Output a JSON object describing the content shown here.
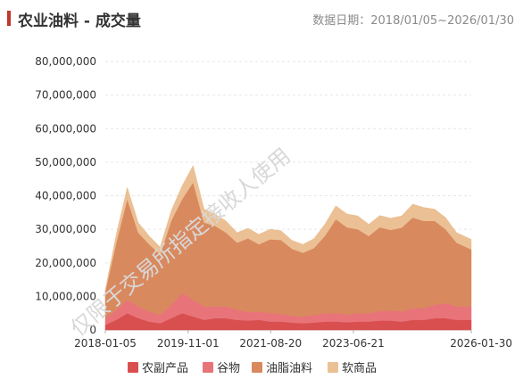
{
  "header": {
    "title": "农业油料 - 成交量",
    "date_range": "数据日期：2018/01/05~2026/01/30"
  },
  "watermark": "仅限于交易所指定接收人使用",
  "chart_data": {
    "type": "area",
    "stacked": true,
    "ylim": [
      0,
      80000000
    ],
    "y_ticks": [
      "80,000,000",
      "70,000,000",
      "60,000,000",
      "50,000,000",
      "40,000,000",
      "30,000,000",
      "20,000,000",
      "10,000,000",
      "0"
    ],
    "y_tick_values": [
      80000000,
      70000000,
      60000000,
      50000000,
      40000000,
      30000000,
      20000000,
      10000000,
      0
    ],
    "x_ticks": [
      "2018-01-05",
      "2019-11-01",
      "2021-08-20",
      "2023-06-21",
      "2026-01-30"
    ],
    "x_tick_positions": [
      0,
      0.2262,
      0.4519,
      0.6779,
      1.0
    ],
    "legend_placement": "bottom",
    "x_index": [
      0,
      0.03,
      0.06,
      0.09,
      0.12,
      0.15,
      0.18,
      0.21,
      0.24,
      0.27,
      0.3,
      0.33,
      0.36,
      0.39,
      0.42,
      0.45,
      0.48,
      0.51,
      0.54,
      0.57,
      0.6,
      0.63,
      0.66,
      0.69,
      0.72,
      0.75,
      0.78,
      0.81,
      0.84,
      0.87,
      0.9,
      0.93,
      0.96,
      1.0
    ],
    "series": [
      {
        "name": "农副产品",
        "color": "#d94f4f",
        "values": [
          1500000,
          3000000,
          5000000,
          3500000,
          2500000,
          2000000,
          3500000,
          5000000,
          4000000,
          3000000,
          3500000,
          3500000,
          3000000,
          2800000,
          3000000,
          2500000,
          2500000,
          2200000,
          2000000,
          2200000,
          2500000,
          2500000,
          2300000,
          2500000,
          2500000,
          2800000,
          2800000,
          2500000,
          3000000,
          3000000,
          3500000,
          3500000,
          3000000,
          3000000
        ]
      },
      {
        "name": "谷物",
        "color": "#e8747a",
        "values": [
          2000000,
          3000000,
          4000000,
          3500000,
          3000000,
          2500000,
          4000000,
          6000000,
          5000000,
          4000000,
          3500000,
          3500000,
          3000000,
          2500000,
          2500000,
          2500000,
          2300000,
          2000000,
          2000000,
          2200000,
          2500000,
          2500000,
          2300000,
          2500000,
          2500000,
          2800000,
          3000000,
          3000000,
          3500000,
          3500000,
          4000000,
          4500000,
          4000000,
          4000000
        ]
      },
      {
        "name": "油脂油料",
        "color": "#d9895e",
        "values": [
          8000000,
          20000000,
          30000000,
          22000000,
          20000000,
          18000000,
          25000000,
          28000000,
          35000000,
          25000000,
          24000000,
          22000000,
          20000000,
          22000000,
          20000000,
          22000000,
          22000000,
          20000000,
          19000000,
          20000000,
          23000000,
          28000000,
          26000000,
          25000000,
          23000000,
          25000000,
          24000000,
          25000000,
          27000000,
          26000000,
          25000000,
          22000000,
          19000000,
          17000000
        ]
      },
      {
        "name": "软商品",
        "color": "#ebc094",
        "values": [
          500000,
          2500000,
          3500000,
          3000000,
          2500000,
          2200000,
          3000000,
          4000000,
          5000000,
          4000000,
          3500000,
          3500000,
          3000000,
          3000000,
          3000000,
          3000000,
          2800000,
          2500000,
          2500000,
          2800000,
          3500000,
          4000000,
          4000000,
          4000000,
          3500000,
          3500000,
          3500000,
          3500000,
          4000000,
          4000000,
          3500000,
          3500000,
          3000000,
          3000000
        ]
      }
    ]
  }
}
